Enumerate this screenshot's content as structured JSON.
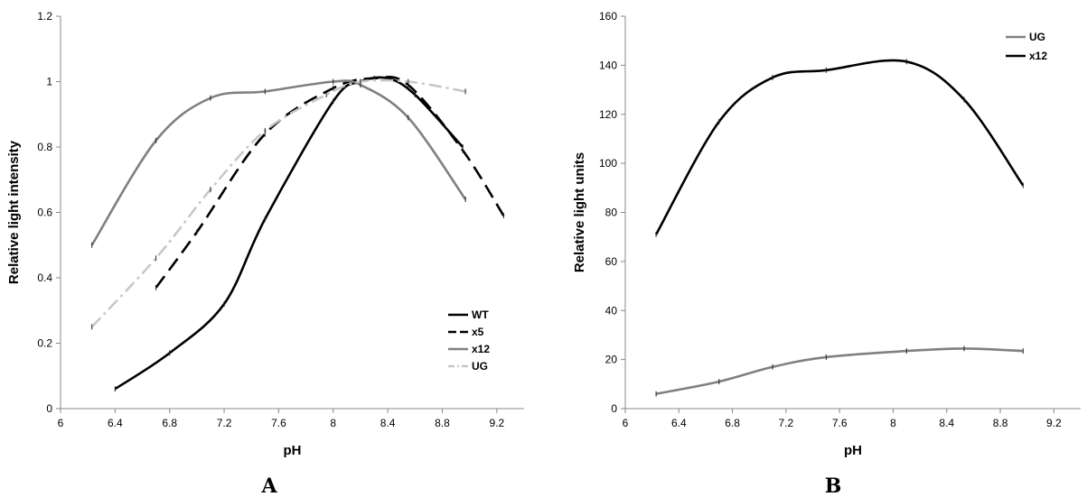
{
  "chart_data": [
    {
      "panel_label": "A",
      "type": "line",
      "xlabel": "pH",
      "ylabel": "Relative light intensity",
      "xlim": [
        6,
        9.4
      ],
      "ylim": [
        0,
        1.2
      ],
      "xticks": [
        "6",
        "6.4",
        "6.8",
        "7.2",
        "7.6",
        "8",
        "8.4",
        "8.8",
        "9.2"
      ],
      "yticks": [
        "0",
        "0.2",
        "0.4",
        "0.6",
        "0.8",
        "1",
        "1.2"
      ],
      "grid": false,
      "legend_position": "bottom-right",
      "series": [
        {
          "name": "WT",
          "color": "#000000",
          "dash": "solid",
          "x": [
            6.4,
            6.8,
            7.2,
            7.5,
            8.0,
            8.2,
            8.4,
            8.6,
            8.95
          ],
          "y": [
            0.06,
            0.17,
            0.32,
            0.58,
            0.94,
            1.0,
            1.01,
            0.96,
            0.8
          ]
        },
        {
          "name": "x5",
          "color": "#000000",
          "dash": "long-dash",
          "x": [
            6.7,
            7.0,
            7.5,
            8.0,
            8.3,
            8.55,
            8.95,
            9.25
          ],
          "y": [
            0.37,
            0.54,
            0.84,
            0.98,
            1.01,
            0.99,
            0.79,
            0.59
          ]
        },
        {
          "name": "x12",
          "color": "#808080",
          "dash": "solid",
          "x": [
            6.23,
            6.7,
            7.1,
            7.5,
            8.0,
            8.2,
            8.55,
            8.97
          ],
          "y": [
            0.5,
            0.82,
            0.95,
            0.97,
            1.0,
            0.99,
            0.89,
            0.64
          ]
        },
        {
          "name": "UG",
          "color": "#c8c8c8",
          "dash": "dash-dot",
          "x": [
            6.23,
            6.7,
            7.1,
            7.5,
            7.95,
            8.2,
            8.55,
            8.97
          ],
          "y": [
            0.25,
            0.46,
            0.67,
            0.85,
            0.96,
            1.0,
            1.0,
            0.97
          ]
        }
      ]
    },
    {
      "panel_label": "B",
      "type": "line",
      "xlabel": "pH",
      "ylabel": "Relative light units",
      "xlim": [
        6,
        9.4
      ],
      "ylim": [
        0,
        160
      ],
      "xticks": [
        "6",
        "6.4",
        "6.8",
        "7.2",
        "7.6",
        "8",
        "8.4",
        "8.8",
        "9.2"
      ],
      "yticks": [
        "0",
        "20",
        "40",
        "60",
        "80",
        "100",
        "120",
        "140",
        "160"
      ],
      "grid": false,
      "legend_position": "top-right",
      "series": [
        {
          "name": "UG",
          "color": "#808080",
          "dash": "solid",
          "x": [
            6.23,
            6.7,
            7.1,
            7.5,
            8.1,
            8.53,
            8.97
          ],
          "y": [
            6,
            11,
            17,
            21,
            23.5,
            24.5,
            23.5
          ]
        },
        {
          "name": "x12",
          "color": "#000000",
          "dash": "solid",
          "x": [
            6.23,
            6.7,
            7.1,
            7.5,
            8.1,
            8.53,
            8.97
          ],
          "y": [
            71,
            117,
            135,
            138,
            141.5,
            126,
            91
          ]
        }
      ]
    }
  ]
}
